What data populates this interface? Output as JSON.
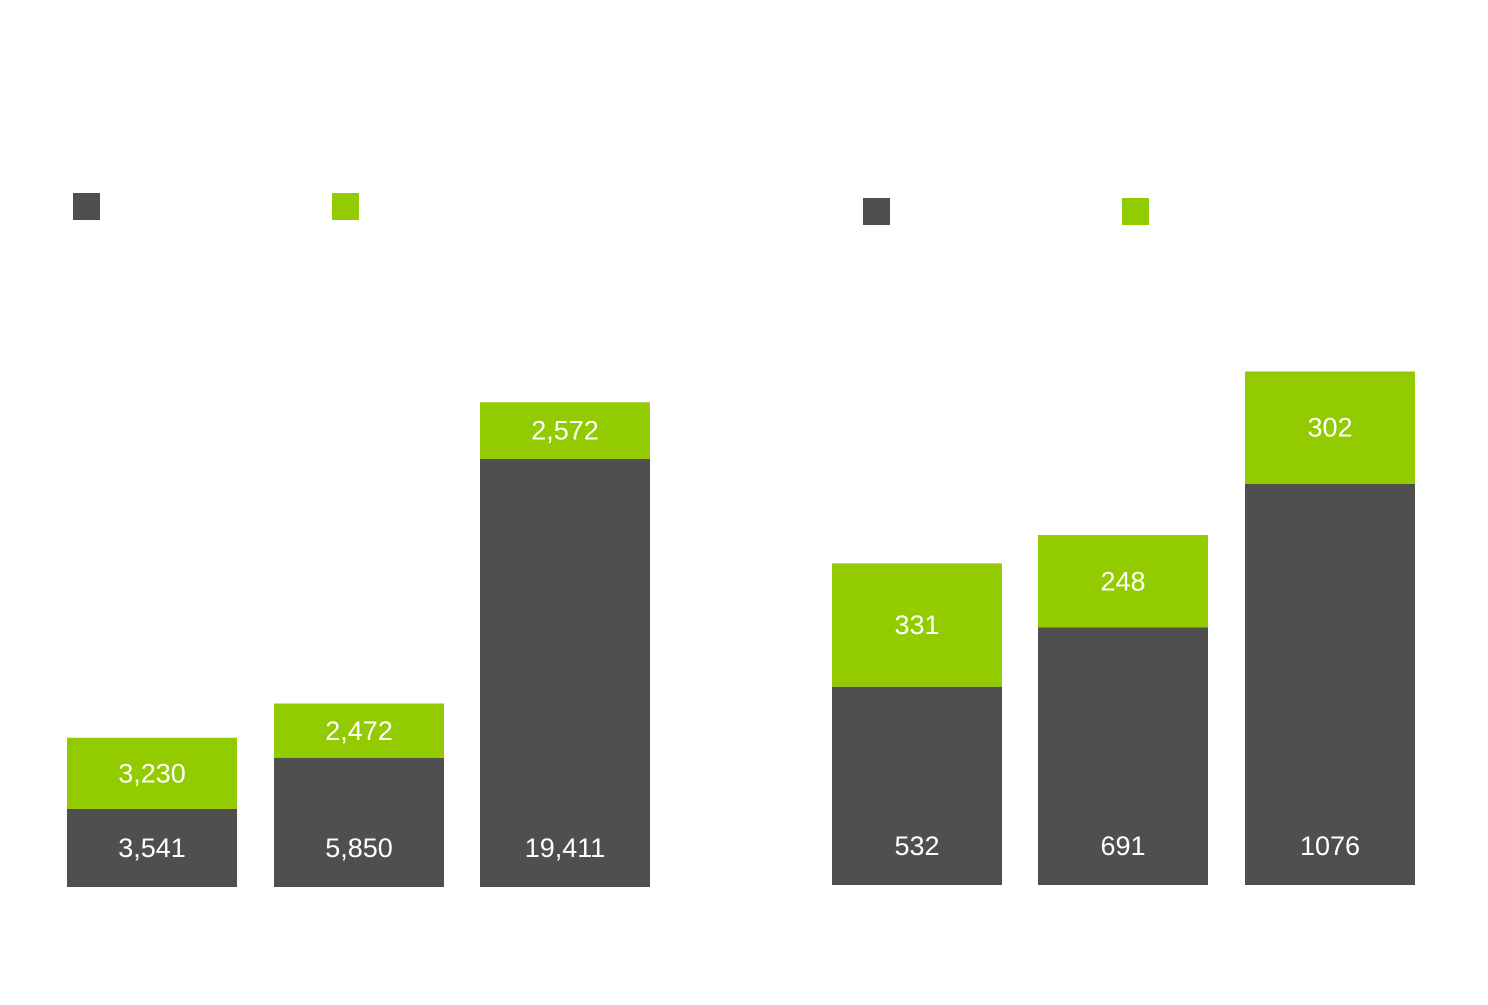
{
  "colors": {
    "base": "#4f4f4f",
    "top": "#92cb00"
  },
  "chart_data": [
    {
      "type": "bar",
      "stacked": true,
      "categories": [
        "",
        "",
        ""
      ],
      "series": [
        {
          "values": [
            3541,
            5850,
            19411
          ],
          "labels": [
            "3,541",
            "5,850",
            "19,411"
          ],
          "color": "#4f4f4f"
        },
        {
          "values": [
            3230,
            2472,
            2572
          ],
          "labels": [
            "3,230",
            "2,472",
            "2,572"
          ],
          "color": "#92cb00"
        }
      ],
      "legend": {
        "position": "top-left",
        "swatches": [
          "#4f4f4f",
          "#92cb00"
        ]
      },
      "grid": false,
      "axes_visible": false
    },
    {
      "type": "bar",
      "stacked": true,
      "categories": [
        "",
        "",
        ""
      ],
      "series": [
        {
          "values": [
            532,
            691,
            1076
          ],
          "labels": [
            "532",
            "691",
            "1076"
          ],
          "color": "#4f4f4f"
        },
        {
          "values": [
            331,
            248,
            302
          ],
          "labels": [
            "331",
            "248",
            "302"
          ],
          "color": "#92cb00"
        }
      ],
      "legend": {
        "position": "top-left",
        "swatches": [
          "#4f4f4f",
          "#92cb00"
        ]
      },
      "grid": false,
      "axes_visible": false
    }
  ]
}
